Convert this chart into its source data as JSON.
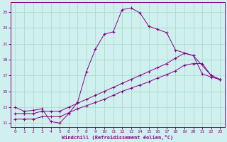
{
  "background_color": "#cff0ee",
  "grid_color": "#aaddcc",
  "line_color": "#880088",
  "xlabel": "Windchill (Refroidissement éolien,°C)",
  "xlim": [
    -0.5,
    23.5
  ],
  "ylim": [
    10.5,
    26.2
  ],
  "xticks": [
    0,
    1,
    2,
    3,
    4,
    5,
    6,
    7,
    8,
    9,
    10,
    11,
    12,
    13,
    14,
    15,
    16,
    17,
    18,
    19,
    20,
    21,
    22,
    23
  ],
  "yticks": [
    11,
    13,
    15,
    17,
    19,
    21,
    23,
    25
  ],
  "line1_x": [
    0,
    1,
    2,
    3,
    4,
    5,
    6,
    7,
    8,
    9,
    10,
    11,
    12,
    13,
    14,
    15,
    16,
    17,
    18,
    20,
    22,
    23
  ],
  "line1_y": [
    13.0,
    12.5,
    12.6,
    12.8,
    11.2,
    11.0,
    12.2,
    13.6,
    17.5,
    20.3,
    22.2,
    22.5,
    25.3,
    25.5,
    24.9,
    23.2,
    22.8,
    22.4,
    20.2,
    19.5,
    17.0,
    16.5
  ],
  "line2_x": [
    0,
    1,
    2,
    3,
    4,
    5,
    6,
    7,
    8,
    9,
    10,
    11,
    12,
    13,
    14,
    15,
    16,
    17,
    18,
    19,
    20,
    21,
    22,
    23
  ],
  "line2_y": [
    11.5,
    11.5,
    11.5,
    11.8,
    11.8,
    11.8,
    12.3,
    12.8,
    13.2,
    13.6,
    14.0,
    14.5,
    15.0,
    15.4,
    15.8,
    16.2,
    16.7,
    17.1,
    17.6,
    18.3,
    18.5,
    18.5,
    17.0,
    16.5
  ],
  "line3_x": [
    0,
    1,
    2,
    3,
    4,
    5,
    6,
    7,
    8,
    9,
    10,
    11,
    12,
    13,
    14,
    15,
    16,
    17,
    18,
    19,
    20,
    21,
    22,
    23
  ],
  "line3_y": [
    12.2,
    12.2,
    12.2,
    12.5,
    12.5,
    12.5,
    13.0,
    13.5,
    14.0,
    14.5,
    15.0,
    15.5,
    16.0,
    16.5,
    17.0,
    17.5,
    18.0,
    18.5,
    19.2,
    19.8,
    19.5,
    17.2,
    16.8,
    16.5
  ]
}
